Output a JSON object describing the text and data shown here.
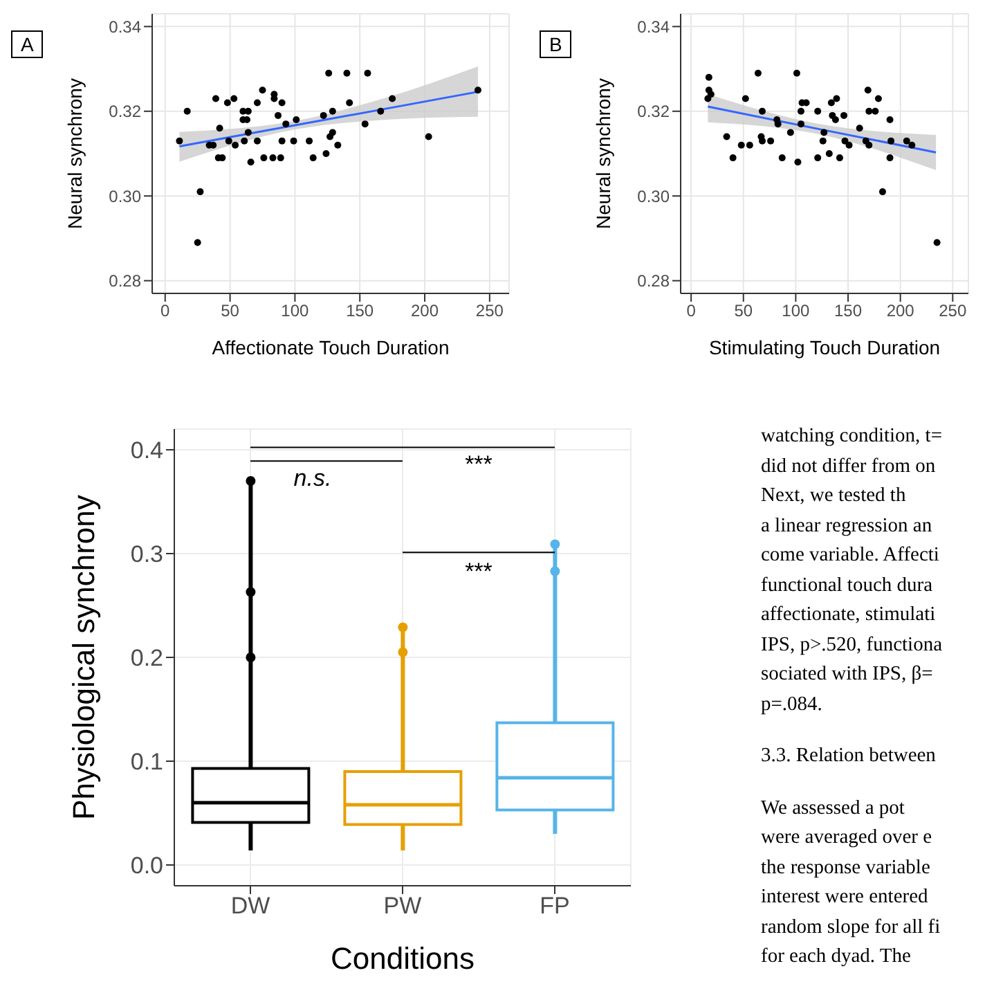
{
  "chart_data": [
    {
      "type": "scatter",
      "title": "A",
      "xlabel": "Affectionate Touch Duration",
      "ylabel": "Neural synchrony",
      "xlim": [
        -10,
        265
      ],
      "xticks": [
        0,
        50,
        100,
        150,
        200,
        250
      ],
      "ylim": [
        0.277,
        0.343
      ],
      "yticks": [
        {
          "value": 0.28,
          "label": "0.28"
        },
        {
          "value": 0.3,
          "label": "0.30"
        },
        {
          "value": 0.32,
          "label": "0.32"
        },
        {
          "value": 0.34,
          "label": "0.34"
        }
      ],
      "grid": true,
      "legend": false,
      "series": [
        {
          "color": "#000000",
          "marker": "circle",
          "x": [
            11,
            17,
            27,
            25,
            34,
            37,
            39,
            41,
            42,
            44,
            48,
            49,
            53,
            54,
            60,
            60,
            63,
            64,
            64,
            61,
            66,
            71,
            71,
            75,
            76,
            83,
            84,
            84,
            87,
            90,
            90,
            89,
            93,
            99,
            101,
            111,
            114,
            122,
            124,
            126,
            127,
            129,
            129,
            133,
            140,
            142,
            154,
            156,
            166,
            175,
            203,
            241
          ],
          "values": [
            0.313,
            0.32,
            0.301,
            0.289,
            0.312,
            0.312,
            0.323,
            0.309,
            0.316,
            0.309,
            0.322,
            0.313,
            0.323,
            0.312,
            0.318,
            0.32,
            0.318,
            0.32,
            0.315,
            0.313,
            0.308,
            0.322,
            0.313,
            0.325,
            0.309,
            0.309,
            0.324,
            0.323,
            0.319,
            0.322,
            0.313,
            0.309,
            0.317,
            0.313,
            0.318,
            0.313,
            0.309,
            0.319,
            0.31,
            0.329,
            0.314,
            0.32,
            0.315,
            0.312,
            0.329,
            0.322,
            0.317,
            0.329,
            0.32,
            0.323,
            0.314,
            0.325
          ]
        },
        {
          "type": "line",
          "color": "#3366ff",
          "marker": "none",
          "x": [
            11,
            100,
            170,
            241
          ],
          "values": [
            0.3117,
            0.3167,
            0.3206,
            0.3246
          ],
          "lower": [
            0.3081,
            0.3157,
            0.318,
            0.3187
          ],
          "upper": [
            0.3151,
            0.3177,
            0.3232,
            0.3306
          ]
        }
      ]
    },
    {
      "type": "scatter",
      "title": "B",
      "xlabel": "Stimulating Touch Duration",
      "ylabel": "Neural synchrony",
      "xlim": [
        -10,
        265
      ],
      "xticks": [
        0,
        50,
        100,
        150,
        200,
        250
      ],
      "ylim": [
        0.277,
        0.343
      ],
      "yticks": [
        {
          "value": 0.28,
          "label": "0.28"
        },
        {
          "value": 0.3,
          "label": "0.30"
        },
        {
          "value": 0.32,
          "label": "0.32"
        },
        {
          "value": 0.34,
          "label": "0.34"
        }
      ],
      "grid": true,
      "legend": false,
      "series": [
        {
          "color": "#000000",
          "marker": "circle",
          "x": [
            16,
            17,
            17,
            19,
            34,
            40,
            48,
            52,
            56,
            64,
            67,
            68,
            68,
            76,
            82,
            83,
            87,
            95,
            101,
            102,
            105,
            106,
            110,
            105,
            121,
            121,
            127,
            126,
            132,
            134,
            135,
            138,
            139,
            140,
            142,
            146,
            147,
            151,
            161,
            167,
            170,
            169,
            170,
            176,
            179,
            183,
            190,
            190,
            191,
            206,
            211,
            235
          ],
          "values": [
            0.323,
            0.325,
            0.328,
            0.324,
            0.314,
            0.309,
            0.312,
            0.323,
            0.312,
            0.329,
            0.314,
            0.313,
            0.32,
            0.313,
            0.318,
            0.317,
            0.309,
            0.315,
            0.329,
            0.308,
            0.32,
            0.322,
            0.322,
            0.317,
            0.32,
            0.309,
            0.315,
            0.313,
            0.31,
            0.322,
            0.319,
            0.318,
            0.323,
            null,
            0.309,
            0.319,
            0.313,
            0.312,
            0.316,
            0.313,
            0.312,
            0.325,
            0.32,
            0.32,
            0.323,
            0.301,
            0.318,
            0.309,
            0.313,
            0.313,
            0.312,
            0.289
          ]
        },
        {
          "type": "line",
          "color": "#3366ff",
          "marker": "none",
          "x": [
            16,
            120,
            234
          ],
          "values": [
            0.3211,
            0.3159,
            0.3103
          ],
          "lower": [
            0.3174,
            0.3147,
            0.3061
          ],
          "upper": [
            0.324,
            0.3171,
            0.3144
          ]
        }
      ]
    },
    {
      "type": "box",
      "categories": [
        "DW",
        "PW",
        "FP"
      ],
      "xlabel": "Conditions",
      "ylabel": "Physiological synchrony",
      "ylim": [
        -0.02,
        0.42
      ],
      "yticks": [
        {
          "value": 0,
          "label": "0.0"
        },
        {
          "value": 0.1,
          "label": "0.1"
        },
        {
          "value": 0.2,
          "label": "0.2"
        },
        {
          "value": 0.3,
          "label": "0.3"
        },
        {
          "value": 0.4,
          "label": "0.4"
        }
      ],
      "grid": true,
      "legend": false,
      "colors": [
        "#000000",
        "#e69f00",
        "#56b4e9"
      ],
      "boxes": [
        {
          "low": 0.014,
          "q1": 0.041,
          "median": 0.06,
          "q3": 0.093,
          "high": 0.37,
          "outliers": [
            0.37,
            0.263,
            0.2
          ]
        },
        {
          "low": 0.014,
          "q1": 0.039,
          "median": 0.058,
          "q3": 0.09,
          "high": 0.229,
          "outliers": [
            0.229,
            0.205
          ]
        },
        {
          "low": 0.03,
          "q1": 0.053,
          "median": 0.084,
          "q3": 0.137,
          "high": 0.309,
          "outliers": [
            0.309,
            0.283
          ]
        }
      ],
      "annotations": [
        "n.s.",
        "***",
        "***"
      ]
    },
    {
      "type": "other",
      "annotations": [
        "watching condition, t=",
        "did not differ from on",
        "Next, we tested th",
        "a linear regression an",
        "come variable. Affecti",
        "functional touch dura",
        "affectionate, stimulati",
        "IPS, p>.520, functiona",
        "sociated with IPS, β=",
        "p=.084.",
        "3.3. Relation between",
        "We assessed a pot",
        "were averaged over e",
        "the response variable",
        "interest were entered",
        "random slope for all fi",
        "for each dyad. The"
      ]
    }
  ]
}
